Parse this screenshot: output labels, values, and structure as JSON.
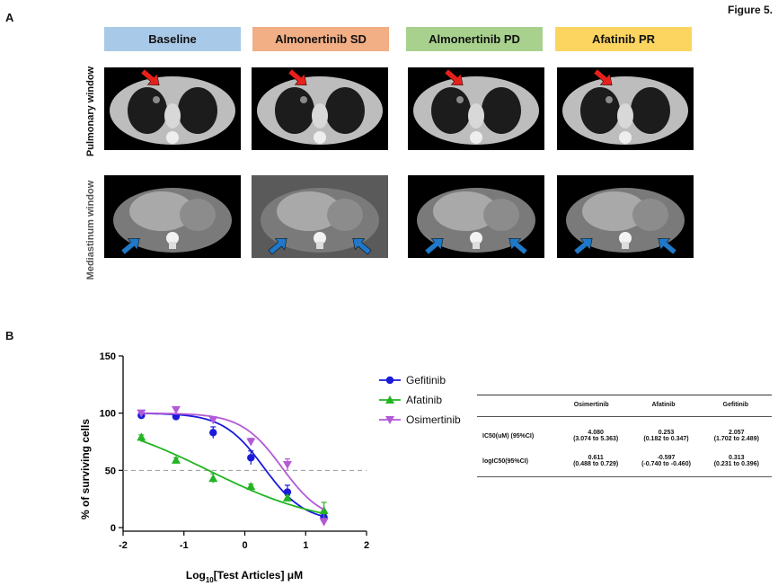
{
  "figure_label": "Figure 5.",
  "panel_a": {
    "letter": "A",
    "headers": [
      {
        "label": "Baseline",
        "color": "#a9c9e8"
      },
      {
        "label": "Almonertinib SD",
        "color": "#f2ae85"
      },
      {
        "label": "Almonertinib PD",
        "color": "#a8d18d"
      },
      {
        "label": "Afatinib PR",
        "color": "#fbd55f"
      }
    ],
    "row_labels": [
      "Pulmonary  window",
      "Mediastinum window"
    ],
    "arrow_colors": {
      "pulmonary": "#e8201c",
      "mediastinum": "#1f78c8"
    }
  },
  "panel_b": {
    "letter": "B",
    "table": {
      "headers": [
        "",
        "Osimertinib",
        "Afatinib",
        "Gefitinib"
      ],
      "rows": [
        {
          "label": "IC50(uM) (95%CI)",
          "cells": [
            [
              "4.080",
              "(3.074 to 5.363)"
            ],
            [
              "0.253",
              "(0.182 to 0.347)"
            ],
            [
              "2.057",
              "(1.702 to 2.489)"
            ]
          ]
        },
        {
          "label": "logIC50(95%CI)",
          "cells": [
            [
              "0.611",
              "(0.488 to 0.729)"
            ],
            [
              "-0.597",
              "(-0.740 to -0.460)"
            ],
            [
              "0.313",
              "(0.231 to 0.396)"
            ]
          ]
        }
      ]
    }
  },
  "chart_data": {
    "type": "scatter",
    "xlabel": "Log10[Test Articles] μM",
    "ylabel": "% of surviving cells",
    "xlim": [
      -2,
      2
    ],
    "ylim": [
      0,
      150
    ],
    "xticks": [
      -2,
      -1,
      0,
      1,
      2
    ],
    "yticks": [
      0,
      50,
      100,
      150
    ],
    "reference_line_y": 50,
    "legend_position": "right",
    "series": [
      {
        "name": "Gefitinib",
        "color": "#1a1adb",
        "marker": "circle",
        "x": [
          -1.7,
          -1.13,
          -0.52,
          0.1,
          0.7,
          1.3
        ],
        "y": [
          98,
          97,
          83,
          61,
          31,
          9
        ],
        "err": [
          2,
          2,
          5,
          6,
          6,
          3
        ],
        "fit": {
          "top": 100,
          "bottom": 5,
          "logIC50": 0.313,
          "hill": 1.3
        }
      },
      {
        "name": "Afatinib",
        "color": "#22b422",
        "marker": "triangle",
        "x": [
          -1.7,
          -1.13,
          -0.52,
          0.1,
          0.7,
          1.3
        ],
        "y": [
          79,
          59,
          43,
          36,
          26,
          15
        ],
        "err": [
          2,
          2,
          4,
          2,
          2,
          7
        ],
        "fit": {
          "top": 100,
          "bottom": 0,
          "logIC50": -0.597,
          "hill": 0.45
        }
      },
      {
        "name": "Osimertinib",
        "color": "#b35ad8",
        "marker": "triangle-down",
        "x": [
          -1.7,
          -1.13,
          -0.52,
          0.1,
          0.7,
          1.3
        ],
        "y": [
          100,
          103,
          94,
          75,
          55,
          5
        ],
        "err": [
          2,
          2,
          3,
          3,
          5,
          3
        ],
        "fit": {
          "top": 100,
          "bottom": 5,
          "logIC50": 0.611,
          "hill": 1.3
        }
      }
    ]
  }
}
